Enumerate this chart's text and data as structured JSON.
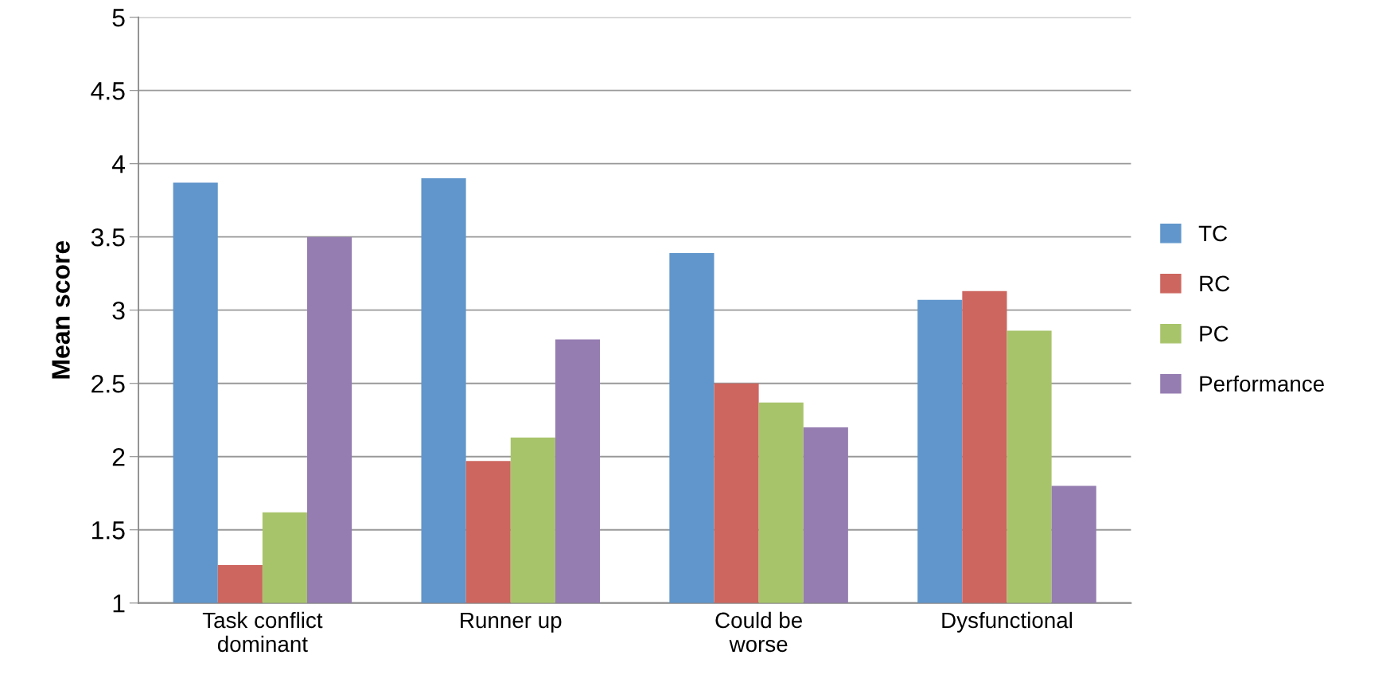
{
  "chart_data": {
    "type": "bar",
    "ylabel": "Mean score",
    "categories": [
      "Task conflict\ndominant",
      "Runner up",
      "Could be\nworse",
      "Dysfunctional"
    ],
    "series": [
      {
        "name": "TC",
        "color": "#6096cb",
        "values": [
          3.87,
          3.9,
          3.39,
          3.07
        ]
      },
      {
        "name": "RC",
        "color": "#cd665f",
        "values": [
          1.26,
          1.97,
          2.5,
          3.13
        ]
      },
      {
        "name": "PC",
        "color": "#a8c46b",
        "values": [
          1.62,
          2.13,
          2.37,
          2.86
        ]
      },
      {
        "name": "Performance",
        "color": "#957db1",
        "values": [
          3.5,
          2.8,
          2.2,
          1.8
        ]
      }
    ],
    "ylim": [
      1,
      5
    ],
    "yticks": [
      1,
      1.5,
      2,
      2.5,
      3,
      3.5,
      4,
      4.5,
      5
    ],
    "grid": "y",
    "legend": "right"
  }
}
